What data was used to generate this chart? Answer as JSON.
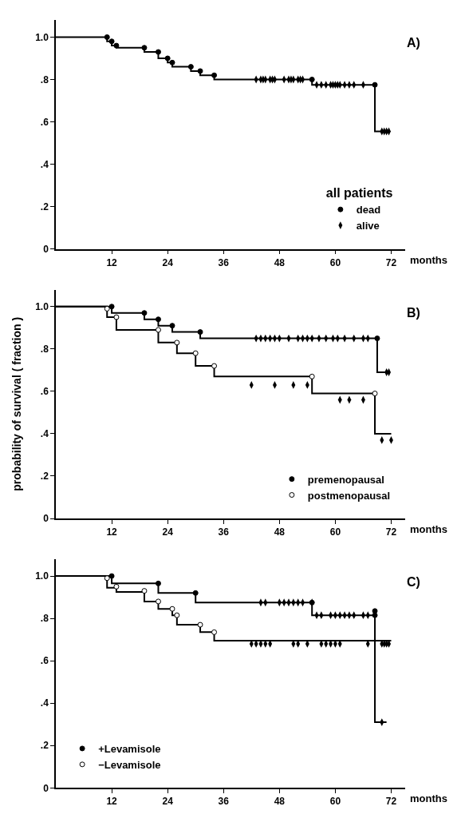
{
  "chart_data": [
    {
      "type": "step",
      "title": "A)",
      "xlabel": "months",
      "xlim": [
        0,
        75
      ],
      "xticks": [
        12,
        24,
        36,
        48,
        60,
        72
      ],
      "ylim": [
        0,
        1.08
      ],
      "yticks": [
        0,
        {
          "value": 0.2,
          "label": ".2"
        },
        {
          "value": 0.4,
          "label": ".4"
        },
        {
          "value": 0.6,
          "label": ".6"
        },
        {
          "value": 0.8,
          "label": ".8"
        },
        {
          "value": 1,
          "label": "1.0"
        }
      ],
      "legend": "bottom right",
      "legend_title": "all patients",
      "series": [
        {
          "color": "#000000",
          "x": [
            0,
            11,
            12,
            13,
            19,
            22,
            24,
            25,
            29,
            31,
            34,
            55,
            68.5,
            71.5
          ],
          "values": [
            1.0,
            0.98,
            0.96,
            0.95,
            0.93,
            0.9,
            0.88,
            0.86,
            0.84,
            0.82,
            0.8,
            0.775,
            0.555,
            0.555
          ]
        },
        {
          "type": "scatter",
          "name": "dead",
          "marker": "circle",
          "color": "#000000",
          "x": [
            11,
            12,
            13,
            19,
            22,
            24,
            25,
            29,
            31,
            34,
            55,
            68.5
          ],
          "values": [
            1.0,
            0.98,
            0.96,
            0.95,
            0.93,
            0.9,
            0.88,
            0.86,
            0.84,
            0.82,
            0.8,
            0.775
          ]
        },
        {
          "type": "scatter",
          "name": "alive",
          "marker": "diamond",
          "color": "#000000",
          "x": [
            43,
            44,
            44.5,
            45,
            46,
            46.5,
            47,
            49,
            50,
            50.5,
            51,
            52,
            52.5,
            53,
            56,
            57,
            58,
            59,
            59.5,
            60,
            60.5,
            61,
            62,
            63,
            64,
            66,
            70,
            70.5,
            71,
            71.5
          ],
          "values": [
            0.8,
            0.8,
            0.8,
            0.8,
            0.8,
            0.8,
            0.8,
            0.8,
            0.8,
            0.8,
            0.8,
            0.8,
            0.8,
            0.8,
            0.775,
            0.775,
            0.775,
            0.775,
            0.775,
            0.775,
            0.775,
            0.775,
            0.775,
            0.775,
            0.775,
            0.775,
            0.555,
            0.555,
            0.555,
            0.555
          ]
        }
      ]
    },
    {
      "type": "step",
      "title": "B)",
      "xlabel": "months",
      "ylabel": "probability of survival ( fraction )",
      "xlim": [
        0,
        75
      ],
      "xticks": [
        12,
        24,
        36,
        48,
        60,
        72
      ],
      "ylim": [
        0,
        1.08
      ],
      "yticks": [
        0,
        {
          "value": 0.2,
          "label": ".2"
        },
        {
          "value": 0.4,
          "label": ".4"
        },
        {
          "value": 0.6,
          "label": ".6"
        },
        {
          "value": 0.8,
          "label": ".8"
        },
        {
          "value": 1,
          "label": "1.0"
        }
      ],
      "legend": "bottom right",
      "series": [
        {
          "color": "#000000",
          "x": [
            0,
            12,
            19,
            22,
            25,
            31,
            69,
            71.5
          ],
          "values": [
            1.0,
            0.97,
            0.94,
            0.91,
            0.88,
            0.85,
            0.69,
            0.69
          ]
        },
        {
          "color": "#000000",
          "x": [
            0,
            11,
            13,
            22,
            26,
            30,
            34,
            55,
            68.5,
            72
          ],
          "values": [
            1.0,
            0.95,
            0.89,
            0.83,
            0.78,
            0.72,
            0.67,
            0.59,
            0.4,
            0.4
          ]
        },
        {
          "type": "scatter",
          "name": "premenopausal",
          "marker": "circle",
          "color": "#000000",
          "x": [
            12,
            19,
            22,
            25,
            31,
            69
          ],
          "values": [
            1.0,
            0.97,
            0.94,
            0.91,
            0.88,
            0.85
          ]
        },
        {
          "type": "scatter",
          "name": "postmenopausal",
          "marker": "circle",
          "color": "#ffffff",
          "x": [
            11,
            13,
            22,
            26,
            30,
            34,
            55,
            68.5
          ],
          "values": [
            0.99,
            0.95,
            0.89,
            0.83,
            0.78,
            0.72,
            0.67,
            0.59
          ]
        },
        {
          "type": "scatter",
          "marker": "diamond",
          "color": "#000000",
          "x": [
            43,
            44,
            45,
            46,
            47,
            48,
            50,
            52,
            53,
            54,
            55,
            56.5,
            58,
            59.5,
            60.5,
            62,
            64,
            66,
            67,
            71,
            71.5
          ],
          "values": [
            0.85,
            0.85,
            0.85,
            0.85,
            0.85,
            0.85,
            0.85,
            0.85,
            0.85,
            0.85,
            0.85,
            0.85,
            0.85,
            0.85,
            0.85,
            0.85,
            0.85,
            0.85,
            0.85,
            0.69,
            0.69
          ]
        },
        {
          "type": "scatter",
          "marker": "diamond",
          "color": "#000000",
          "x": [
            42,
            47,
            51,
            54,
            61,
            63,
            66,
            70,
            72
          ],
          "values": [
            0.63,
            0.63,
            0.63,
            0.63,
            0.56,
            0.56,
            0.56,
            0.37,
            0.37
          ]
        }
      ]
    },
    {
      "type": "step",
      "title": "C)",
      "xlabel": "months",
      "xlim": [
        0,
        75
      ],
      "xticks": [
        12,
        24,
        36,
        48,
        60,
        72
      ],
      "ylim": [
        0,
        1.08
      ],
      "yticks": [
        0,
        {
          "value": 0.2,
          "label": ".2"
        },
        {
          "value": 0.4,
          "label": ".4"
        },
        {
          "value": 0.6,
          "label": ".6"
        },
        {
          "value": 0.8,
          "label": ".8"
        },
        {
          "value": 1,
          "label": "1.0"
        }
      ],
      "legend": "bottom left",
      "series": [
        {
          "color": "#000000",
          "x": [
            0,
            12,
            22,
            30,
            55,
            68.5,
            71
          ],
          "values": [
            1.0,
            0.965,
            0.92,
            0.875,
            0.815,
            0.31,
            0.31
          ]
        },
        {
          "color": "#000000",
          "x": [
            0,
            11,
            13,
            19,
            22,
            25,
            26,
            31,
            34,
            72
          ],
          "values": [
            1.0,
            0.945,
            0.925,
            0.88,
            0.845,
            0.815,
            0.77,
            0.735,
            0.695,
            0.695
          ]
        },
        {
          "type": "scatter",
          "name": "+Levamisole",
          "marker": "circle",
          "color": "#000000",
          "x": [
            12,
            22,
            30,
            55,
            68.5,
            68.5
          ],
          "values": [
            1.0,
            0.965,
            0.92,
            0.875,
            0.835,
            0.815
          ]
        },
        {
          "type": "scatter",
          "name": "−Levamisole",
          "marker": "circle",
          "color": "#ffffff",
          "x": [
            11,
            13,
            19,
            22,
            25,
            26,
            31,
            34
          ],
          "values": [
            0.99,
            0.95,
            0.93,
            0.88,
            0.845,
            0.815,
            0.77,
            0.735
          ]
        },
        {
          "type": "scatter",
          "marker": "diamond",
          "color": "#000000",
          "x": [
            44,
            45,
            48,
            49,
            50,
            51,
            52,
            53,
            55,
            56,
            57,
            59,
            60,
            61,
            62,
            63,
            64,
            66,
            67,
            70
          ],
          "values": [
            0.875,
            0.875,
            0.875,
            0.875,
            0.875,
            0.875,
            0.875,
            0.875,
            0.875,
            0.815,
            0.815,
            0.815,
            0.815,
            0.815,
            0.815,
            0.815,
            0.815,
            0.815,
            0.815,
            0.31
          ]
        },
        {
          "type": "scatter",
          "marker": "diamond",
          "color": "#000000",
          "x": [
            42,
            43,
            44,
            45,
            46,
            51,
            52,
            54,
            57,
            58,
            59,
            60,
            61,
            67,
            70,
            70.5,
            71,
            71.5
          ],
          "values": [
            0.68,
            0.68,
            0.68,
            0.68,
            0.68,
            0.68,
            0.68,
            0.68,
            0.68,
            0.68,
            0.68,
            0.68,
            0.68,
            0.68,
            0.68,
            0.68,
            0.68,
            0.68
          ]
        }
      ]
    }
  ]
}
